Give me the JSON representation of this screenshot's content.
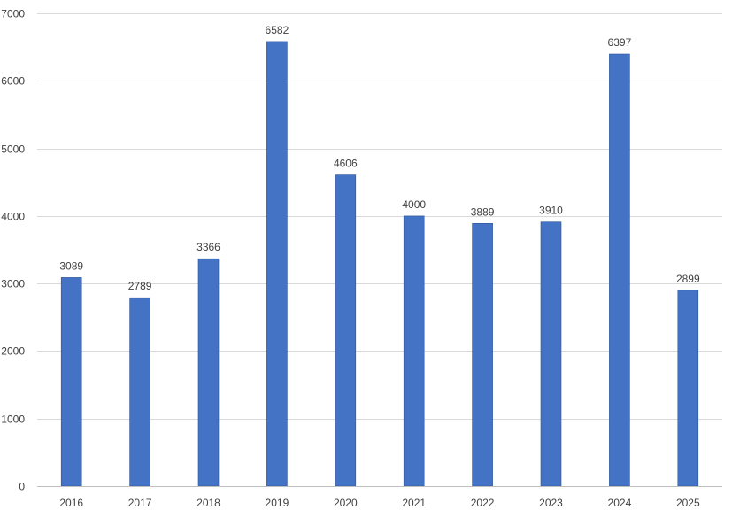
{
  "chart_data": {
    "type": "bar",
    "title": "",
    "xlabel": "",
    "ylabel": "",
    "categories": [
      "2016",
      "2017",
      "2018",
      "2019",
      "2020",
      "2021",
      "2022",
      "2023",
      "2024",
      "2025"
    ],
    "values": [
      3089,
      2789,
      3366,
      6582,
      4606,
      4000,
      3889,
      3910,
      6397,
      2899
    ],
    "data_labels": [
      "3089",
      "2789",
      "3366",
      "6582",
      "4606",
      "4000",
      "3889",
      "3910",
      "6397",
      "2899"
    ],
    "ylim": [
      0,
      7000
    ],
    "yticks": [
      0,
      1000,
      2000,
      3000,
      4000,
      5000,
      6000,
      7000
    ],
    "ytick_labels": [
      "0",
      "1000",
      "2000",
      "3000",
      "4000",
      "5000",
      "6000",
      "7000"
    ],
    "grid": true,
    "legend": "none",
    "bar_color": "#4472c4",
    "bar_edge_color": "#2f5597",
    "gridline_color": "#d9d9d9",
    "text_color": "#404040"
  }
}
